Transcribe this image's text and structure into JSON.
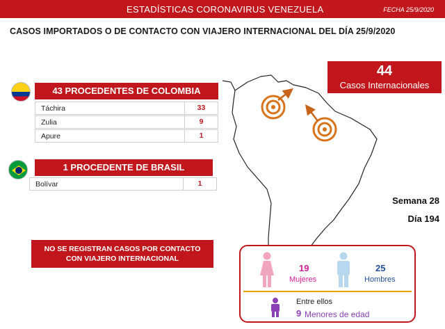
{
  "header": {
    "title": "ESTADÍSTICAS CORONAVIRUS VENEZUELA",
    "date": "FECHA 25/9/2020"
  },
  "subtitle": "CASOS IMPORTADOS O DE CONTACTO CON VIAJERO INTERNACIONAL DEL DÍA  25/9/2020",
  "colombia": {
    "heading": "43 PROCEDENTES DE COLOMBIA",
    "rows": [
      {
        "label": "Táchira",
        "value": "33"
      },
      {
        "label": "Zulia",
        "value": "9"
      },
      {
        "label": "Apure",
        "value": "1"
      }
    ]
  },
  "brasil": {
    "heading": "1 PROCEDENTE DE BRASIL",
    "rows": [
      {
        "label": "Bolívar",
        "value": "1"
      }
    ]
  },
  "no_contact": {
    "line1": "NO SE REGISTRAN CASOS POR CONTACTO",
    "line2": "CON VIAJERO INTERNACIONAL"
  },
  "international": {
    "count": "44",
    "label": "Casos Internacionales"
  },
  "week": {
    "semana": "Semana 28",
    "dia": "Día 194"
  },
  "demographics": {
    "women_count": "19",
    "women_label": "Mujeres",
    "men_count": "25",
    "men_label": "Hombres",
    "among": "Entre ellos",
    "minors_count": "9",
    "minors_label": "Menores de edad"
  },
  "colors": {
    "primary_red": "#c0161c",
    "women_pink": "#d81b9a",
    "men_blue": "#1f4e9a",
    "minors_purple": "#8a3fb5",
    "divider_orange": "#e8a200",
    "marker_orange": "#d9731a"
  },
  "icons": [
    "colombia-flag-icon",
    "brazil-flag-icon",
    "woman-icon",
    "man-icon",
    "child-icon",
    "location-marker-icon",
    "arrow-icon"
  ]
}
